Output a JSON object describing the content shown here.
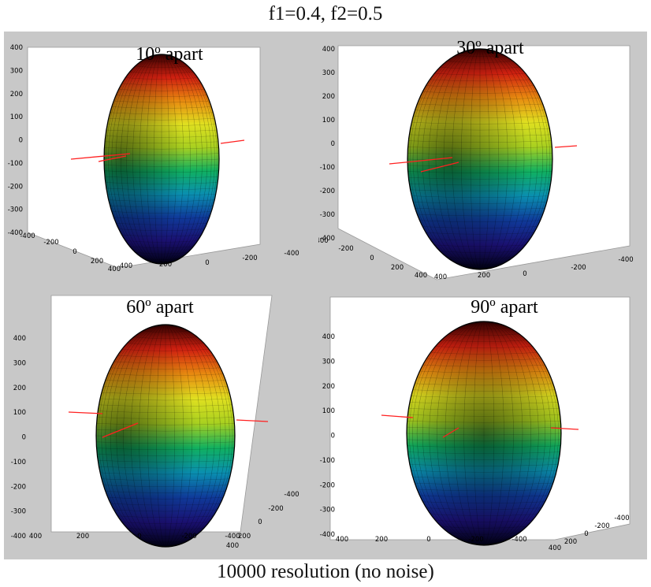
{
  "figure": {
    "title": "f1=0.4, f2=0.5",
    "footer": "10000 resolution (no noise)"
  },
  "colors": {
    "panel_bg": "#c8c8c8",
    "axes_bg": "#ffffff",
    "ray_color": "#ff2020",
    "colormap": [
      "#000010",
      "#1a1070",
      "#0f3a9a",
      "#0a8fb0",
      "#10b060",
      "#a8d020",
      "#e0e020",
      "#e88a10",
      "#d02010",
      "#300000"
    ]
  },
  "chart_data": [
    {
      "type": "surface",
      "title": "10º apart",
      "separation_deg": 10,
      "zlim": [
        -400,
        400
      ],
      "z_ticks": [
        "400",
        "300",
        "200",
        "100",
        "0",
        "-100",
        "-200",
        "-300",
        "-400"
      ],
      "x_ticks": [
        "-400",
        "-200",
        "0",
        "200",
        "400"
      ],
      "y_ticks": [
        "400",
        "200",
        "0",
        "-200",
        "-400"
      ]
    },
    {
      "type": "surface",
      "title": "30º apart",
      "separation_deg": 30,
      "zlim": [
        -400,
        400
      ],
      "z_ticks": [
        "400",
        "300",
        "200",
        "100",
        "0",
        "-100",
        "-200",
        "-300",
        "-400"
      ],
      "x_ticks": [
        "-400",
        "-200",
        "0",
        "200",
        "400"
      ],
      "y_ticks": [
        "400",
        "200",
        "0",
        "-200",
        "-400"
      ]
    },
    {
      "type": "surface",
      "title": "60º apart",
      "separation_deg": 60,
      "zlim": [
        -400,
        400
      ],
      "z_ticks": [
        "400",
        "300",
        "200",
        "100",
        "0",
        "-100",
        "-200",
        "-300",
        "-400"
      ],
      "x_ticks": [
        "400",
        "200",
        "0",
        "-200",
        "-400"
      ],
      "y_ticks": [
        "-400",
        "-200",
        "0",
        "200",
        "400"
      ]
    },
    {
      "type": "surface",
      "title": "90º apart",
      "separation_deg": 90,
      "zlim": [
        -400,
        400
      ],
      "z_ticks": [
        "400",
        "300",
        "200",
        "100",
        "0",
        "-100",
        "-200",
        "-300",
        "-400"
      ],
      "x_ticks": [
        "400",
        "200",
        "0",
        "-200",
        "-400"
      ],
      "y_ticks": [
        "-400",
        "-200",
        "0",
        "200",
        "400"
      ]
    }
  ]
}
